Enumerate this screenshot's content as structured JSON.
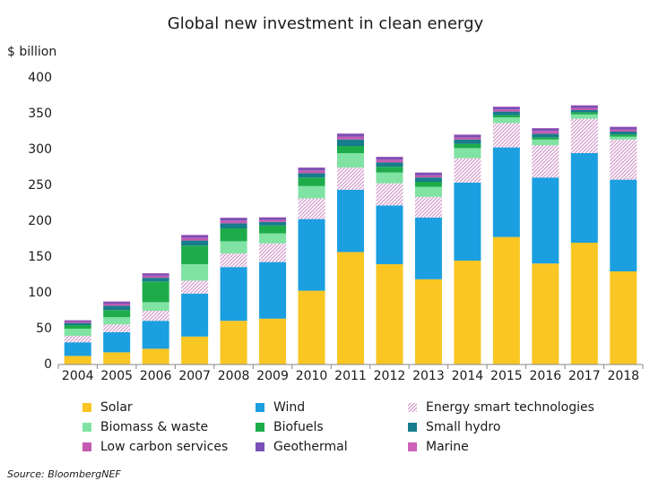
{
  "chart_data": {
    "type": "stacked_bar",
    "title": "Global new investment in clean energy",
    "y_label": "$ billion",
    "source": "Source: BloombergNEF",
    "categories": [
      "2004",
      "2005",
      "2006",
      "2007",
      "2008",
      "2009",
      "2010",
      "2011",
      "2012",
      "2013",
      "2014",
      "2015",
      "2016",
      "2017",
      "2018"
    ],
    "ylim": [
      0,
      400
    ],
    "yticks": [
      0,
      50,
      100,
      150,
      200,
      250,
      300,
      350,
      400
    ],
    "grid": false,
    "series": [
      {
        "name": "Solar",
        "color": "#f9c623",
        "values": [
          12,
          17,
          22,
          39,
          61,
          64,
          103,
          157,
          140,
          119,
          145,
          178,
          141,
          170,
          130
        ]
      },
      {
        "name": "Wind",
        "color": "#1b9fe0",
        "values": [
          19,
          28,
          39,
          60,
          75,
          79,
          100,
          87,
          82,
          86,
          109,
          125,
          120,
          125,
          128
        ]
      },
      {
        "name": "Energy smart technologies",
        "color": "#d49ccc",
        "pattern": "hatch",
        "values": [
          9,
          11,
          14,
          18,
          19,
          26,
          29,
          31,
          31,
          29,
          34,
          34,
          45,
          48,
          56
        ]
      },
      {
        "name": "Biomass & waste",
        "color": "#80e3a3",
        "values": [
          10,
          10,
          12,
          23,
          17,
          14,
          17,
          20,
          15,
          14,
          14,
          8,
          8,
          6,
          4
        ]
      },
      {
        "name": "Biofuels",
        "color": "#1eac4b",
        "values": [
          5,
          10,
          29,
          26,
          18,
          11,
          12,
          10,
          8,
          7,
          6,
          3,
          3,
          3,
          3
        ]
      },
      {
        "name": "Small hydro",
        "color": "#177c8c",
        "values": [
          3,
          6,
          5,
          7,
          7,
          5,
          6,
          9,
          6,
          6,
          6,
          5,
          5,
          3,
          4
        ]
      },
      {
        "name": "Low carbon services",
        "color": "#c25bb1",
        "values": [
          2,
          3,
          3,
          4,
          4,
          3,
          4,
          4,
          4,
          3,
          3,
          3,
          4,
          3,
          3
        ]
      },
      {
        "name": "Geothermal",
        "color": "#7a4fb6",
        "values": [
          1.5,
          2.5,
          3,
          3.5,
          3.5,
          3,
          3.5,
          4,
          3.5,
          3.5,
          3.5,
          3.5,
          3.5,
          3.5,
          3.5
        ]
      },
      {
        "name": "Marine",
        "color": "#cb62b8",
        "values": [
          0.5,
          0.5,
          0.5,
          0.5,
          0.5,
          0.5,
          0.5,
          0.5,
          0.5,
          0.5,
          0.5,
          0.5,
          0.5,
          0.5,
          0.5
        ]
      }
    ]
  }
}
